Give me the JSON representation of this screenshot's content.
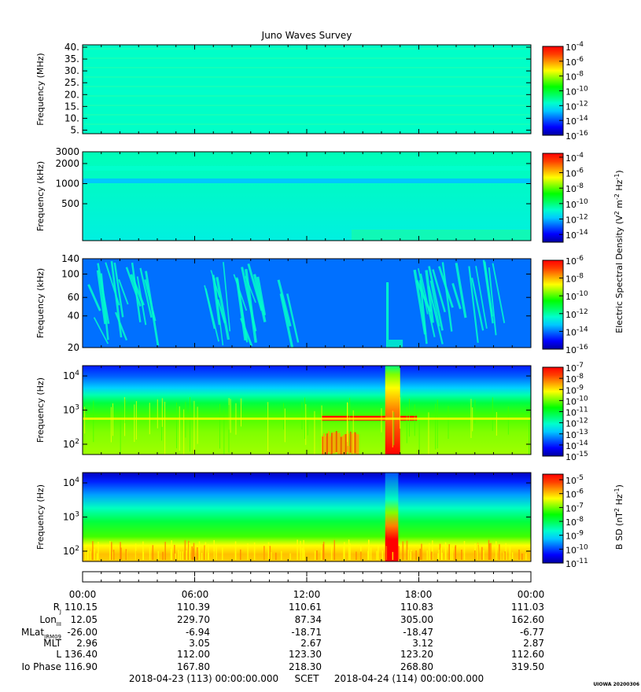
{
  "title": "Juno Waves Survey",
  "footer_left": "2018-04-23 (113) 00:00:00.000",
  "footer_mid": "SCET",
  "footer_right": "2018-04-24 (114) 00:00:00.000",
  "stamp": "UIOWA 20200306",
  "colors": {
    "background": "#00ffcc",
    "spectrum": [
      "#0000a0",
      "#0000ff",
      "#0060ff",
      "#00c8ff",
      "#00ffcc",
      "#00ff60",
      "#00ff00",
      "#80ff00",
      "#ffff00",
      "#ffa000",
      "#ff4000",
      "#ff0000"
    ]
  },
  "shared_colorbar_label": {
    "main": "Electric Spectral Density (V",
    "sup1": "2",
    "mid": " m",
    "sup2": "-2",
    "mid2": " Hz",
    "sup3": "-1",
    "end": ")"
  },
  "time_axis": {
    "tick_labels": [
      "00:00",
      "06:00",
      "12:00",
      "18:00",
      "00:00"
    ],
    "minor_ticks_per_hour": 1
  },
  "ephemeris": {
    "rows": [
      {
        "label": "R",
        "sub": "J",
        "values": [
          "110.15",
          "110.39",
          "110.61",
          "110.83",
          "111.03"
        ]
      },
      {
        "label": "Lon",
        "sub": "III",
        "values": [
          "12.05",
          "229.70",
          "87.34",
          "305.00",
          "162.60"
        ]
      },
      {
        "label": "MLat",
        "sub": "JRM09",
        "values": [
          "-26.00",
          "-6.94",
          "-18.71",
          "-18.47",
          "-6.77"
        ]
      },
      {
        "label": "MLT",
        "sub": "",
        "values": [
          "2.96",
          "3.05",
          "2.67",
          "3.12",
          "2.87"
        ]
      },
      {
        "label": "L",
        "sub": "",
        "values": [
          "136.40",
          "112.00",
          "123.30",
          "123.20",
          "112.60"
        ]
      },
      {
        "label": "Io Phase",
        "sub": "",
        "values": [
          "116.90",
          "167.80",
          "218.30",
          "268.80",
          "319.50"
        ]
      }
    ]
  },
  "chart_data": [
    {
      "type": "heatmap",
      "panel": "HFR high",
      "ylabel": "Frequency (MHz)",
      "y_scale": "linear",
      "ylim": [
        3.5,
        41
      ],
      "yticks": [
        {
          "v": 5,
          "t": "5."
        },
        {
          "v": 10,
          "t": "10."
        },
        {
          "v": 15,
          "t": "15."
        },
        {
          "v": 20,
          "t": "20."
        },
        {
          "v": 25,
          "t": "25."
        },
        {
          "v": 30,
          "t": "30."
        },
        {
          "v": 35,
          "t": "35."
        },
        {
          "v": 40,
          "t": "40."
        }
      ],
      "colorbar": {
        "min": -16,
        "max": -4,
        "ticks": [
          -16,
          -14,
          -12,
          -10,
          -8,
          -6,
          -4
        ]
      },
      "features": [
        {
          "kind": "band",
          "y": 21.0,
          "width": 1.2,
          "level": -11.3
        }
      ]
    },
    {
      "type": "heatmap",
      "panel": "HFR low",
      "ylabel": "Frequency (kHz)",
      "y_scale": "log",
      "ylim": [
        140,
        3000
      ],
      "yticks": [
        {
          "v": 500,
          "t": "500"
        },
        {
          "v": 1000,
          "t": "1000"
        },
        {
          "v": 2000,
          "t": "2000"
        },
        {
          "v": 3000,
          "t": "3000"
        }
      ],
      "colorbar": {
        "min": -15,
        "max": -3.5,
        "ticks": [
          -14,
          -12,
          -10,
          -8,
          -6,
          -4
        ]
      },
      "features": [
        {
          "kind": "band",
          "y": 1700,
          "width": 0.05,
          "level": -11
        },
        {
          "kind": "band",
          "y": 1100,
          "width": 0.04,
          "level": -11.5
        }
      ]
    },
    {
      "type": "heatmap",
      "panel": "LFR",
      "ylabel": "Frequency (kHz)",
      "y_scale": "log",
      "ylim": [
        20,
        140
      ],
      "yticks": [
        {
          "v": 20,
          "t": "20"
        },
        {
          "v": 40,
          "t": "40"
        },
        {
          "v": 60,
          "t": "60"
        },
        {
          "v": 100,
          "t": "100"
        },
        {
          "v": 140,
          "t": "140"
        }
      ],
      "colorbar": {
        "min": -16,
        "max": -6,
        "ticks": [
          -16,
          -14,
          -12,
          -10,
          -8,
          -6
        ]
      },
      "features": [
        {
          "kind": "emission",
          "x": [
            0.0,
            3.5
          ],
          "level": -12.5
        },
        {
          "kind": "emission",
          "x": [
            6.5,
            11.0
          ],
          "level": -12.5
        },
        {
          "kind": "emission",
          "x": [
            17.5,
            22.0
          ],
          "level": -12.5
        },
        {
          "kind": "spike",
          "x": 16.3,
          "level": -12
        }
      ]
    },
    {
      "type": "heatmap",
      "panel": "LFR-lo E",
      "ylabel": "Frequency (Hz)",
      "y_scale": "log",
      "ylim": [
        50,
        20000
      ],
      "yticks": [
        {
          "v": 100,
          "t": "10",
          "e": "2"
        },
        {
          "v": 1000,
          "t": "10",
          "e": "3"
        },
        {
          "v": 10000,
          "t": "10",
          "e": "4"
        }
      ],
      "colorbar": {
        "min": -15,
        "max": -7,
        "ticks": [
          -15,
          -14,
          -13,
          -12,
          -11,
          -10,
          -9,
          -8,
          -7
        ]
      },
      "features": [
        {
          "kind": "cross",
          "x": [
            12.8,
            17.9
          ],
          "y": 580,
          "level": -7.2
        },
        {
          "kind": "burst",
          "x": [
            16.2,
            17.0
          ],
          "level": -7.5
        },
        {
          "kind": "patch",
          "x": [
            12.8,
            14.8
          ],
          "y": [
            60,
            250
          ],
          "level": -8
        }
      ]
    },
    {
      "type": "heatmap",
      "panel": "LFR-lo B",
      "ylabel": "Frequency (Hz)",
      "y_scale": "log",
      "ylim": [
        50,
        20000
      ],
      "yticks": [
        {
          "v": 100,
          "t": "10",
          "e": "2"
        },
        {
          "v": 1000,
          "t": "10",
          "e": "3"
        },
        {
          "v": 10000,
          "t": "10",
          "e": "4"
        }
      ],
      "colorbar": {
        "label": "B SD (nT",
        "sup1": "2",
        "mid": " Hz",
        "sup2": "-1",
        "end": ")",
        "min": -11,
        "max": -4.6,
        "ticks": [
          -11,
          -10,
          -9,
          -8,
          -7,
          -6,
          -5
        ]
      },
      "features": [
        {
          "kind": "burst",
          "x": [
            16.2,
            16.9
          ],
          "level": -5
        }
      ]
    }
  ]
}
